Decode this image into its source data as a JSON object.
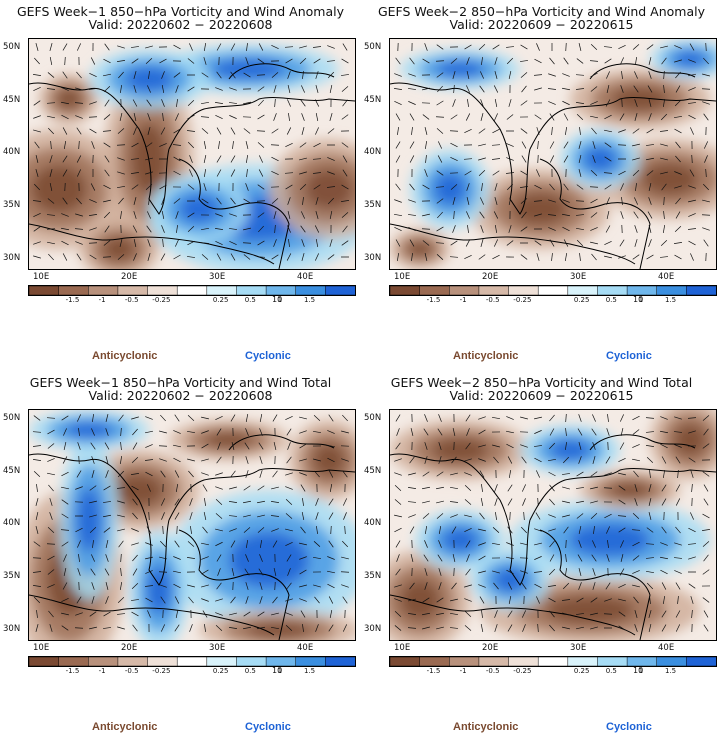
{
  "panels": [
    {
      "title": "GEFS Week−1 850−hPa Vorticity and Wind Anomaly",
      "valid": "Valid: 20220602 − 20220608"
    },
    {
      "title": "GEFS Week−2 850−hPa Vorticity and Wind Anomaly",
      "valid": "Valid: 20220609 − 20220615"
    },
    {
      "title": "GEFS Week−1 850−hPa Vorticity and Wind Total",
      "valid": "Valid: 20220602 − 20220608"
    },
    {
      "title": "GEFS Week−2 850−hPa Vorticity and Wind Total",
      "valid": "Valid: 20220609 − 20220615"
    }
  ],
  "lat_labels": [
    "50N",
    "45N",
    "40N",
    "35N",
    "30N"
  ],
  "lon_labels": [
    "10E",
    "20E",
    "30E",
    "40E"
  ],
  "colorbar": {
    "labels": [
      "-1.5",
      "-1",
      "-0.5",
      "-0.25",
      "0.25",
      "0.5",
      "1",
      "1.5"
    ],
    "unit": "10",
    "colors": [
      "#7b4a33",
      "#9a6a52",
      "#b8917c",
      "#d6b9a8",
      "#efe1d8",
      "#ffffff",
      "#d9f3fb",
      "#a6dcf5",
      "#6fb7ec",
      "#3b8fe0",
      "#1f63d6"
    ]
  },
  "legend": {
    "anticyclonic": "Anticyclonic",
    "cyclonic": "Cyclonic"
  }
}
